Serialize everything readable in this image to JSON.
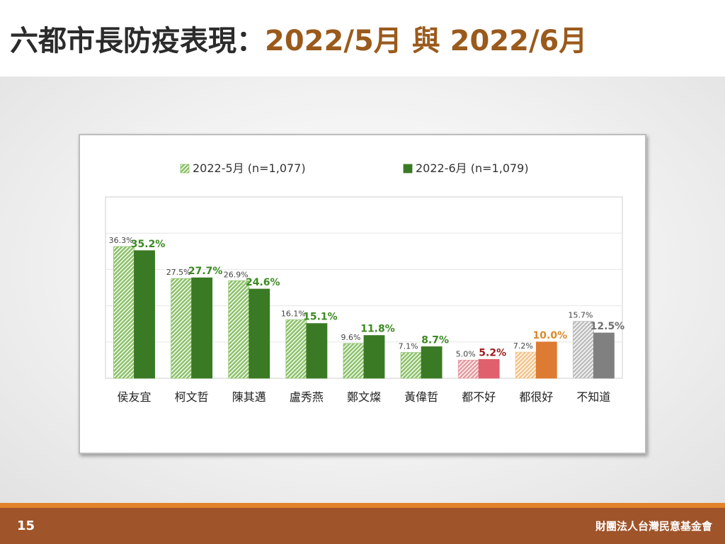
{
  "slide": {
    "title_main": "六都市長防疫表現：",
    "title_dates": "2022/5月 與 2022/6月",
    "page_number": "15",
    "organization": "財團法人台灣民意基金會"
  },
  "chart_data": {
    "type": "bar",
    "title": "",
    "xlabel": "",
    "ylabel": "",
    "ylim": [
      0,
      50
    ],
    "grid": true,
    "legend_position": "top",
    "categories": [
      "侯友宜",
      "柯文哲",
      "陳其邁",
      "盧秀燕",
      "鄭文燦",
      "黃偉哲",
      "都不好",
      "都很好",
      "不知道"
    ],
    "series": [
      {
        "name": "2022-5月 (n=1,077)",
        "values": [
          36.3,
          27.5,
          26.9,
          16.1,
          9.6,
          7.1,
          5.0,
          7.2,
          15.7
        ],
        "labels": [
          "36.3%",
          "27.5%",
          "26.9%",
          "16.1%",
          "9.6%",
          "7.1%",
          "5.0%",
          "7.2%",
          "15.7%"
        ],
        "color": "#8cc26a",
        "pattern": "hatched",
        "category_colors": [
          "#8cc26a",
          "#8cc26a",
          "#8cc26a",
          "#8cc26a",
          "#8cc26a",
          "#8cc26a",
          "#e59aa0",
          "#f3c48a",
          "#bdbdbd"
        ]
      },
      {
        "name": "2022-6月 (n=1,079)",
        "values": [
          35.2,
          27.7,
          24.6,
          15.1,
          11.8,
          8.7,
          5.2,
          10.0,
          12.5
        ],
        "labels": [
          "35.2%",
          "27.7%",
          "24.6%",
          "15.1%",
          "11.8%",
          "8.7%",
          "5.2%",
          "10.0%",
          "12.5%"
        ],
        "color": "#3b7a24",
        "pattern": "solid",
        "category_colors": [
          "#3b7a24",
          "#3b7a24",
          "#3b7a24",
          "#3b7a24",
          "#3b7a24",
          "#3b7a24",
          "#e0606e",
          "#de7b32",
          "#808080"
        ],
        "label_colors": [
          "#3b8a22",
          "#3b8a22",
          "#3b8a22",
          "#3b8a22",
          "#3b8a22",
          "#3b8a22",
          "#9e1b1b",
          "#d98a2b",
          "#707070"
        ]
      }
    ]
  }
}
